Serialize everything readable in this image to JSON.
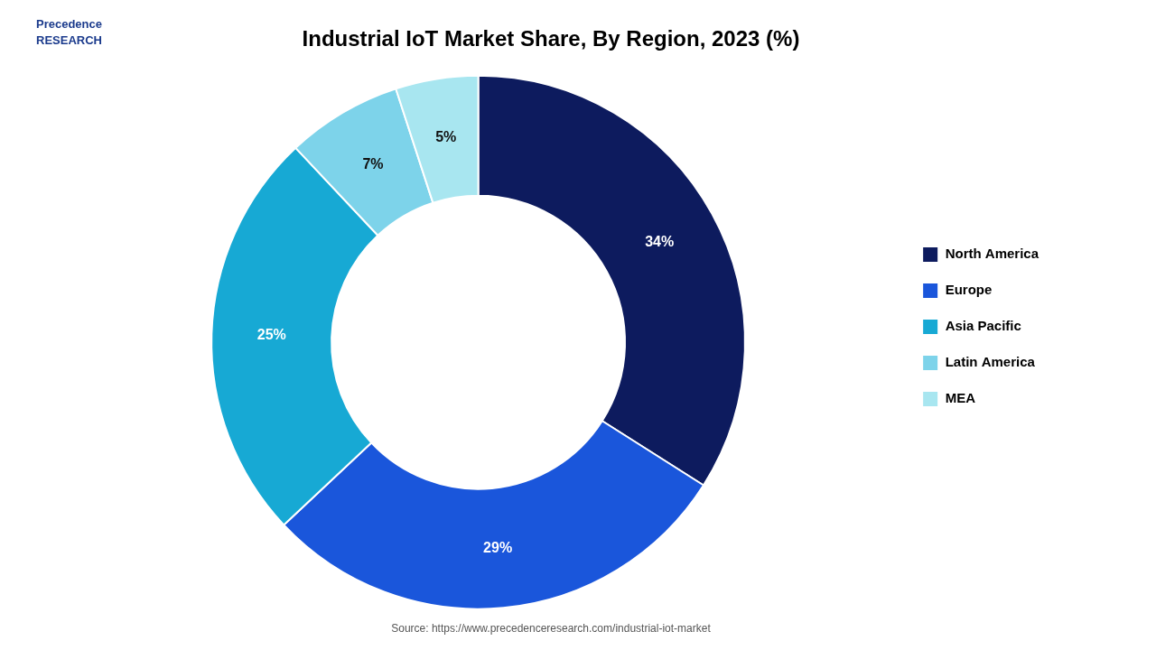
{
  "chart_data": {
    "type": "doughnut",
    "title": "Industrial IoT Market Share, By Region, 2023 (%)",
    "categories": [
      "North America",
      "Europe",
      "Asia Pacific",
      "Latin America",
      "MEA"
    ],
    "values": [
      34,
      29,
      25,
      7,
      5
    ],
    "value_labels": [
      "34%",
      "29%",
      "25%",
      "7%",
      "5%"
    ],
    "colors": [
      "#0d1b5e",
      "#1a56db",
      "#17a9d4",
      "#7dd3ea",
      "#a8e6f0"
    ],
    "data_labels": true,
    "legend": "right",
    "annotations": [
      "Precedence\nRESEARCH",
      "Source: https://www.precedenceresearch.com/industrial-iot-market"
    ]
  }
}
